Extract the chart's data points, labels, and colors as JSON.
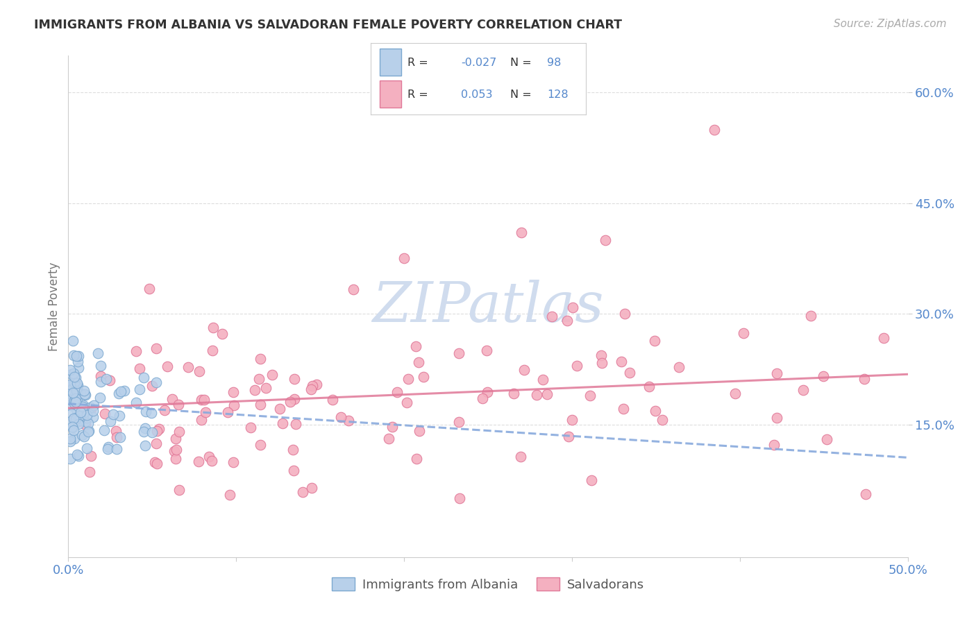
{
  "title": "IMMIGRANTS FROM ALBANIA VS SALVADORAN FEMALE POVERTY CORRELATION CHART",
  "source": "Source: ZipAtlas.com",
  "ylabel_label": "Female Poverty",
  "xlim": [
    0.0,
    0.5
  ],
  "ylim": [
    -0.03,
    0.65
  ],
  "xticks": [
    0.0,
    0.1,
    0.2,
    0.3,
    0.4,
    0.5
  ],
  "xtick_labels": [
    "0.0%",
    "",
    "",
    "",
    "",
    "50.0%"
  ],
  "ytick_positions": [
    0.15,
    0.3,
    0.45,
    0.6
  ],
  "ytick_labels": [
    "15.0%",
    "30.0%",
    "45.0%",
    "60.0%"
  ],
  "legend_label1": "Immigrants from Albania",
  "legend_label2": "Salvadorans",
  "R1": "-0.027",
  "N1": "98",
  "R2": "0.053",
  "N2": "128",
  "color_albania_fill": "#b8d0ea",
  "color_albania_edge": "#7ba8d0",
  "color_salvadoran_fill": "#f4b0c0",
  "color_salvadoran_edge": "#e07898",
  "color_trendline_albania": "#88aadd",
  "color_trendline_salvadoran": "#e07898",
  "color_axis_text": "#5588cc",
  "color_grid": "#dddddd",
  "watermark_color": "#d0dcee",
  "background_color": "#ffffff",
  "trendline_sal_x0": 0.0,
  "trendline_sal_x1": 0.5,
  "trendline_sal_y0": 0.172,
  "trendline_sal_y1": 0.218,
  "trendline_alb_x0": 0.0,
  "trendline_alb_x1": 0.5,
  "trendline_alb_y0": 0.178,
  "trendline_alb_y1": 0.105
}
